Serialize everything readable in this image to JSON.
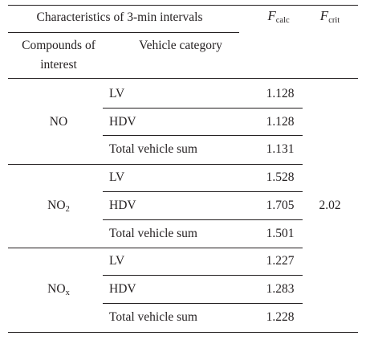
{
  "header": {
    "group_label": "Characteristics of 3-min intervals",
    "col_compounds_line1": "Compounds of",
    "col_compounds_line2": "interest",
    "col_vehicle": "Vehicle category",
    "fcalc_var": "F",
    "fcalc_sub": "calc",
    "fcrit_var": "F",
    "fcrit_sub": "crit"
  },
  "fcrit_value": "2.02",
  "groups": [
    {
      "compound": "NO",
      "compound_sub": "",
      "rows": [
        {
          "category": "LV",
          "fcalc": "1.128"
        },
        {
          "category": "HDV",
          "fcalc": "1.128"
        },
        {
          "category": "Total vehicle sum",
          "fcalc": "1.131"
        }
      ]
    },
    {
      "compound": "NO",
      "compound_sub": "2",
      "rows": [
        {
          "category": "LV",
          "fcalc": "1.528"
        },
        {
          "category": "HDV",
          "fcalc": "1.705"
        },
        {
          "category": "Total vehicle sum",
          "fcalc": "1.501"
        }
      ]
    },
    {
      "compound": "NO",
      "compound_sub": "x",
      "rows": [
        {
          "category": "LV",
          "fcalc": "1.227"
        },
        {
          "category": "HDV",
          "fcalc": "1.283"
        },
        {
          "category": "Total vehicle sum",
          "fcalc": "1.228"
        }
      ]
    }
  ]
}
